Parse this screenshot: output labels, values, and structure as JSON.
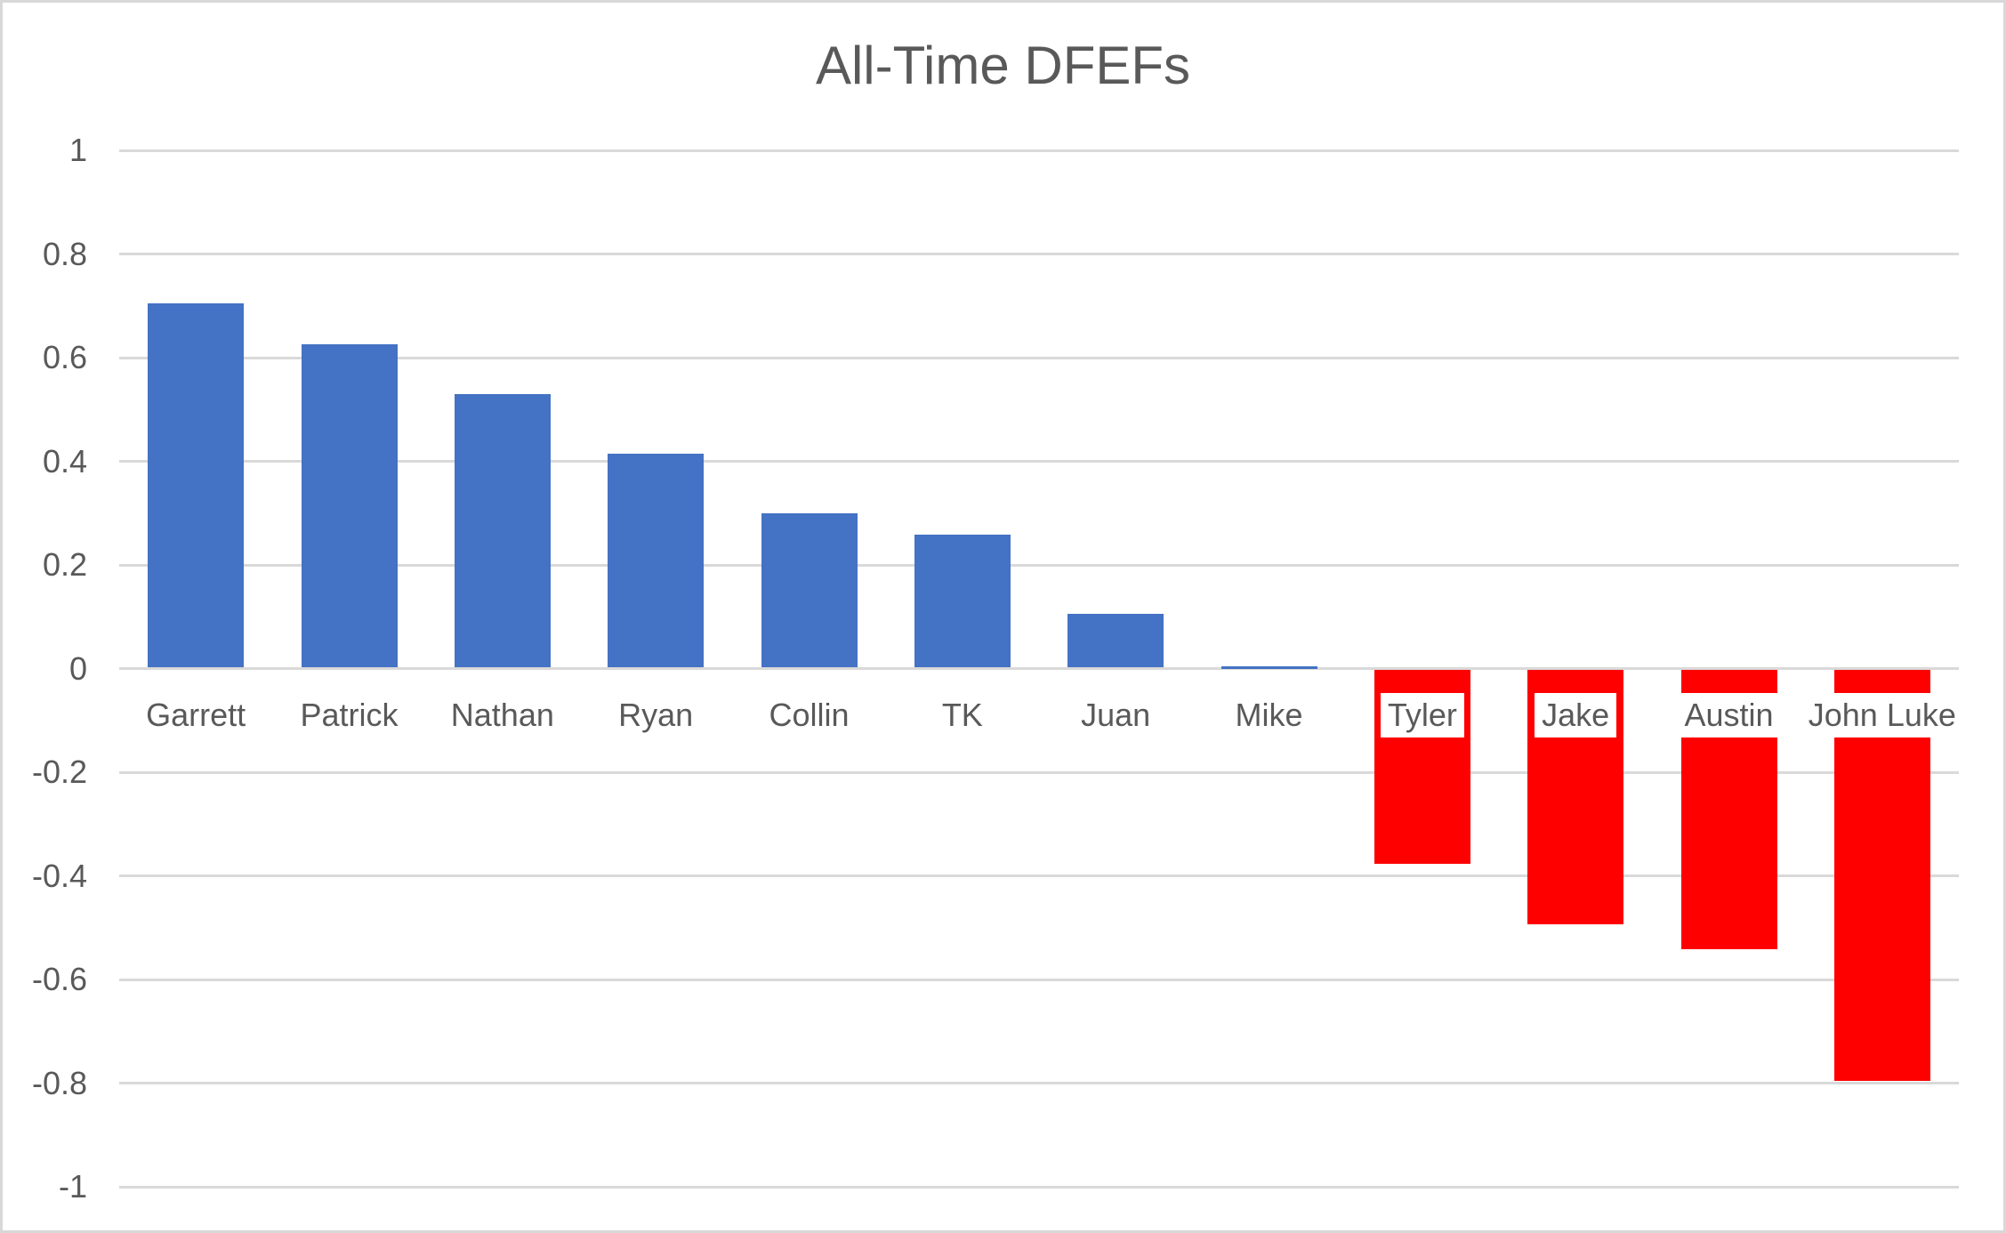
{
  "chart_data": {
    "type": "bar",
    "title": "All-Time DFEFs",
    "categories": [
      "Garrett",
      "Patrick",
      "Nathan",
      "Ryan",
      "Collin",
      "TK",
      "Juan",
      "Mike",
      "Tyler",
      "Jake",
      "Austin",
      "John Luke"
    ],
    "values": [
      0.705,
      0.625,
      0.53,
      0.415,
      0.3,
      0.258,
      0.105,
      0.005,
      -0.377,
      -0.493,
      -0.542,
      -0.795
    ],
    "xlabel": "",
    "ylabel": "",
    "ylim": [
      -1,
      1
    ],
    "ytick_step": 0.2,
    "ytick_labels": [
      "1",
      "0.8",
      "0.6",
      "0.4",
      "0.2",
      "0",
      "-0.2",
      "-0.4",
      "-0.6",
      "-0.8",
      "-1"
    ],
    "grid": true,
    "legend": "none",
    "bar_color_rule": "positive bars blue, negative bars red",
    "colors": {
      "positive_bar": "#4472C4",
      "negative_bar": "#FF0000",
      "text": "#595959",
      "gridline": "#D9D9D9",
      "frame_border": "#D8D8D8",
      "background": "#FFFFFF"
    }
  }
}
